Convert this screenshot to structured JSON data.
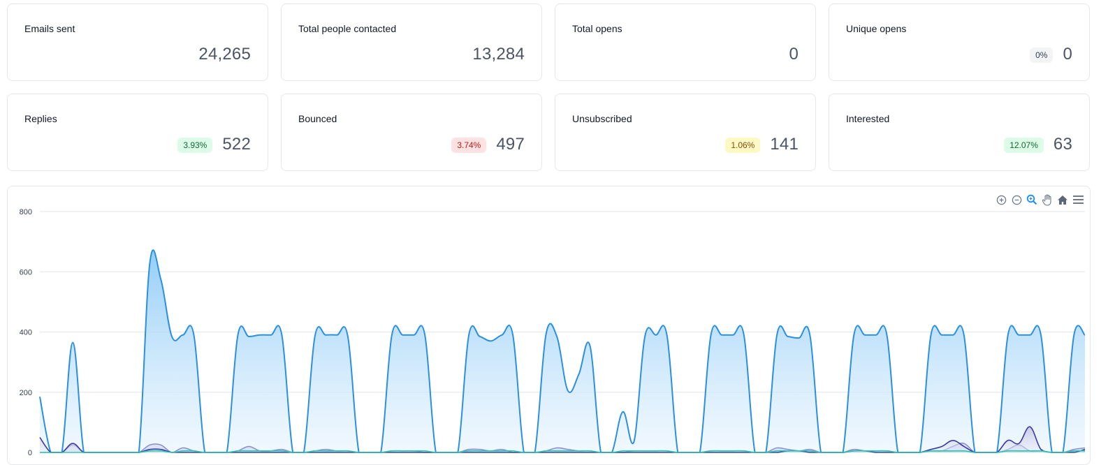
{
  "stats": [
    {
      "label": "Emails sent",
      "value": "24,265",
      "badge": null
    },
    {
      "label": "Total people contacted",
      "value": "13,284",
      "badge": null
    },
    {
      "label": "Total opens",
      "value": "0",
      "badge": null
    },
    {
      "label": "Unique opens",
      "value": "0",
      "badge": "0%",
      "badge_bg": "#f3f4f6",
      "badge_fg": "#374151"
    },
    {
      "label": "Replies",
      "value": "522",
      "badge": "3.93%",
      "badge_bg": "#dcfce7",
      "badge_fg": "#166534"
    },
    {
      "label": "Bounced",
      "value": "497",
      "badge": "3.74%",
      "badge_bg": "#fee2e2",
      "badge_fg": "#b91c1c"
    },
    {
      "label": "Unsubscribed",
      "value": "141",
      "badge": "1.06%",
      "badge_bg": "#fef9c3",
      "badge_fg": "#854d0e"
    },
    {
      "label": "Interested",
      "value": "63",
      "badge": "12.07%",
      "badge_bg": "#dcfce7",
      "badge_fg": "#166534"
    }
  ],
  "toolbar": {
    "icons": [
      "zoom-in-icon",
      "zoom-out-icon",
      "magnifier-icon",
      "pan-hand-icon",
      "home-icon",
      "menu-icon"
    ],
    "active": "magnifier-icon"
  },
  "chart_data": {
    "type": "area",
    "ylim": [
      0,
      800
    ],
    "yticks": [
      "800",
      "600",
      "400",
      "200",
      "0"
    ],
    "grid": true,
    "series": [
      {
        "color": "#2b90e0",
        "values": [
          185,
          0,
          0,
          365,
          0,
          0,
          0,
          0,
          0,
          0,
          630,
          575,
          385,
          390,
          390,
          0,
          0,
          0,
          390,
          385,
          390,
          390,
          390,
          0,
          0,
          385,
          390,
          390,
          385,
          0,
          0,
          0,
          390,
          390,
          390,
          390,
          0,
          0,
          0,
          390,
          385,
          370,
          390,
          390,
          0,
          0,
          390,
          385,
          205,
          260,
          355,
          0,
          0,
          135,
          35,
          385,
          390,
          390,
          0,
          0,
          0,
          390,
          390,
          390,
          390,
          0,
          0,
          390,
          385,
          380,
          390,
          0,
          0,
          0,
          390,
          390,
          390,
          390,
          0,
          0,
          0,
          390,
          390,
          390,
          390,
          0,
          0,
          0,
          390,
          390,
          390,
          390,
          0,
          0,
          390,
          390
        ]
      },
      {
        "color": "#8b8fd4",
        "values": [
          0,
          0,
          0,
          25,
          0,
          0,
          0,
          0,
          0,
          0,
          25,
          25,
          0,
          15,
          5,
          0,
          0,
          0,
          5,
          20,
          5,
          5,
          10,
          0,
          0,
          5,
          10,
          5,
          5,
          0,
          0,
          0,
          5,
          5,
          5,
          0,
          0,
          0,
          0,
          10,
          10,
          5,
          10,
          0,
          0,
          0,
          5,
          15,
          10,
          5,
          5,
          0,
          0,
          0,
          5,
          5,
          5,
          5,
          0,
          0,
          0,
          5,
          5,
          5,
          5,
          0,
          0,
          15,
          10,
          5,
          10,
          0,
          0,
          0,
          10,
          5,
          5,
          5,
          0,
          0,
          0,
          5,
          5,
          20,
          30,
          0,
          0,
          0,
          10,
          25,
          5,
          5,
          0,
          0,
          10,
          15
        ]
      },
      {
        "color": "#3b3aa0",
        "values": [
          50,
          0,
          0,
          30,
          0,
          0,
          0,
          0,
          0,
          0,
          10,
          10,
          0,
          0,
          0,
          0,
          0,
          0,
          0,
          0,
          0,
          0,
          0,
          0,
          0,
          0,
          0,
          0,
          0,
          0,
          0,
          0,
          0,
          0,
          0,
          0,
          0,
          0,
          0,
          0,
          0,
          0,
          0,
          0,
          0,
          0,
          0,
          0,
          0,
          0,
          0,
          0,
          0,
          0,
          0,
          0,
          0,
          0,
          0,
          0,
          0,
          0,
          0,
          0,
          0,
          0,
          0,
          0,
          5,
          5,
          0,
          0,
          0,
          0,
          5,
          5,
          0,
          0,
          0,
          0,
          0,
          10,
          20,
          40,
          20,
          0,
          0,
          0,
          40,
          30,
          85,
          10,
          0,
          0,
          0,
          10
        ]
      },
      {
        "color": "#2fc6b0",
        "values": [
          0,
          0,
          0,
          0,
          0,
          0,
          0,
          0,
          0,
          0,
          5,
          5,
          0,
          5,
          5,
          0,
          0,
          0,
          5,
          5,
          5,
          5,
          5,
          0,
          0,
          5,
          5,
          5,
          5,
          0,
          0,
          0,
          5,
          5,
          5,
          5,
          0,
          0,
          0,
          5,
          5,
          5,
          5,
          5,
          0,
          0,
          5,
          5,
          5,
          5,
          5,
          0,
          0,
          5,
          5,
          5,
          5,
          5,
          0,
          0,
          0,
          5,
          5,
          5,
          5,
          0,
          0,
          5,
          5,
          5,
          5,
          0,
          0,
          0,
          5,
          5,
          5,
          5,
          0,
          0,
          0,
          5,
          5,
          5,
          5,
          0,
          0,
          0,
          5,
          5,
          5,
          5,
          0,
          0,
          5,
          5
        ]
      }
    ]
  }
}
